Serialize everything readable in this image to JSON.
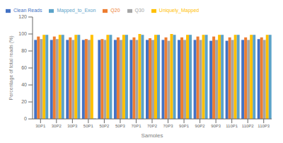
{
  "chart_data": {
    "type": "bar",
    "xlabel": "Samples",
    "ylabel": "Percentage of total reads (%)",
    "categories": [
      "30P1",
      "30P2",
      "30P3",
      "50P1",
      "50P2",
      "50P3",
      "70P1",
      "70P2",
      "70P3",
      "90P1",
      "90P2",
      "90P3",
      "110P1",
      "110P2",
      "110P3"
    ],
    "series": [
      {
        "name": "Clean Reads",
        "color": "#4472c4",
        "values": [
          93,
          93,
          93,
          93,
          93,
          93,
          93,
          93,
          93,
          93,
          93,
          92,
          92,
          93,
          94
        ]
      },
      {
        "name": "Q20",
        "color": "#ed7d31",
        "values": [
          97,
          97,
          96,
          94,
          94,
          96,
          96,
          95,
          96,
          96,
          97,
          97,
          96,
          96,
          96
        ]
      },
      {
        "name": "Q30",
        "color": "#a5a5a5",
        "values": [
          94,
          94,
          93,
          93,
          93,
          93,
          93,
          93,
          92,
          93,
          93,
          93,
          93,
          93,
          93
        ]
      },
      {
        "name": "Uniquely_Mapped",
        "color": "#ffc000",
        "values": [
          99,
          99,
          99,
          99,
          99,
          99,
          100,
          99,
          100,
          99,
          99,
          99,
          99,
          99,
          99
        ]
      },
      {
        "name": "Mapped_to_Exon",
        "color": "#5ba3c9",
        "values": [
          99,
          99,
          99,
          0.5,
          99,
          99,
          99,
          99,
          99,
          99,
          99,
          99,
          99,
          99,
          99
        ]
      }
    ],
    "ylim": [
      0,
      120
    ],
    "yticks": [
      0,
      20,
      40,
      60,
      80,
      100,
      120
    ],
    "grid": false,
    "legend": "upper left"
  }
}
